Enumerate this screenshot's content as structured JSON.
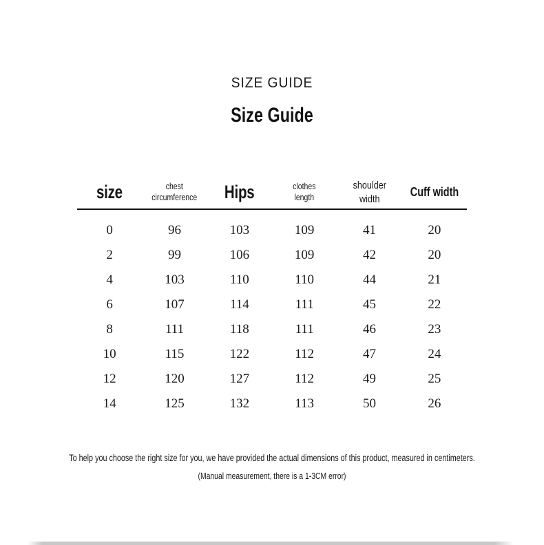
{
  "page": {
    "eyebrow": "SIZE GUIDE",
    "title": "Size Guide"
  },
  "size_table": {
    "columns": [
      {
        "label": "size",
        "style": "xl",
        "name": "column-header-size"
      },
      {
        "label": "chest\ncircumference",
        "style": "sm",
        "name": "column-header-chest-circumference"
      },
      {
        "label": "Hips",
        "style": "xl",
        "name": "column-header-hips"
      },
      {
        "label": "clothes\nlength",
        "style": "sm",
        "name": "column-header-clothes-length"
      },
      {
        "label": "shoulder\nwidth",
        "style": "md",
        "name": "column-header-shoulder-width"
      },
      {
        "label": "Cuff width",
        "style": "lg",
        "name": "column-header-cuff-width"
      }
    ],
    "rows": [
      [
        "0",
        "96",
        "103",
        "109",
        "41",
        "20"
      ],
      [
        "2",
        "99",
        "106",
        "109",
        "42",
        "20"
      ],
      [
        "4",
        "103",
        "110",
        "110",
        "44",
        "21"
      ],
      [
        "6",
        "107",
        "114",
        "111",
        "45",
        "22"
      ],
      [
        "8",
        "111",
        "118",
        "111",
        "46",
        "23"
      ],
      [
        "10",
        "115",
        "122",
        "112",
        "47",
        "24"
      ],
      [
        "12",
        "120",
        "127",
        "112",
        "49",
        "25"
      ],
      [
        "14",
        "125",
        "132",
        "113",
        "50",
        "26"
      ]
    ]
  },
  "footer": {
    "note_line1": "To help you choose the right size for you, we have provided the actual dimensions of this product, measured in centimeters.",
    "note_line2": "(Manual measurement, there is a 1-3CM error)"
  },
  "colors": {
    "text": "#161616",
    "rule": "#121212",
    "bottom_bar": "#c8c8c8"
  }
}
